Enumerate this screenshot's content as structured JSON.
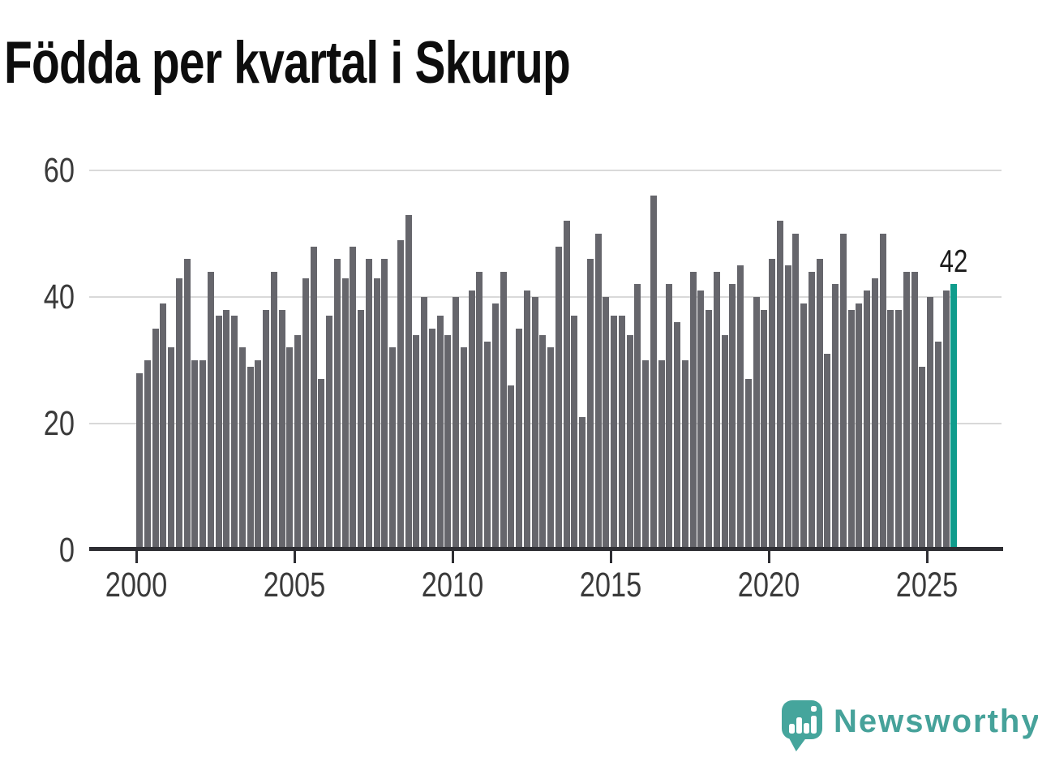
{
  "title": "Födda per kvartal i Skurup",
  "chart_data": {
    "type": "bar",
    "title": "Födda per kvartal i Skurup",
    "x_start": "2000-Q1",
    "x_end": "2025-Q4",
    "period": "quarter",
    "values": [
      28,
      30,
      35,
      39,
      32,
      43,
      46,
      30,
      30,
      44,
      37,
      38,
      37,
      32,
      29,
      30,
      38,
      44,
      38,
      32,
      34,
      43,
      48,
      27,
      37,
      46,
      43,
      48,
      38,
      46,
      43,
      46,
      32,
      49,
      53,
      34,
      40,
      35,
      37,
      34,
      40,
      32,
      41,
      44,
      33,
      39,
      44,
      26,
      35,
      41,
      40,
      34,
      32,
      48,
      52,
      37,
      21,
      46,
      50,
      40,
      37,
      37,
      34,
      42,
      30,
      56,
      30,
      42,
      36,
      30,
      44,
      41,
      38,
      44,
      34,
      42,
      45,
      27,
      40,
      38,
      46,
      52,
      45,
      50,
      39,
      44,
      46,
      31,
      42,
      50,
      38,
      39,
      41,
      43,
      50,
      38,
      38,
      44,
      44,
      29,
      40,
      33,
      41,
      42
    ],
    "highlight_last": true,
    "last_value": 42,
    "yticks": [
      0,
      20,
      40,
      60
    ],
    "xticks": [
      2000,
      2005,
      2010,
      2015,
      2020,
      2025
    ],
    "ylim": [
      0,
      62
    ],
    "grid": "horizontal",
    "legend": "none",
    "bar_color": "#66666c",
    "highlight_color": "#0f9c8c"
  },
  "annotation": {
    "last_value_label": "42"
  },
  "branding": {
    "name": "Newsworthy",
    "logo_color": "#45a59c",
    "icon": "bar-chart-speech-bubble-icon"
  },
  "colors": {
    "background": "#ffffff",
    "title_text": "#0d0d0d",
    "axis_text": "#3a3a3a",
    "gridline": "#d9d9d9",
    "axis_line": "#2e2e33"
  }
}
